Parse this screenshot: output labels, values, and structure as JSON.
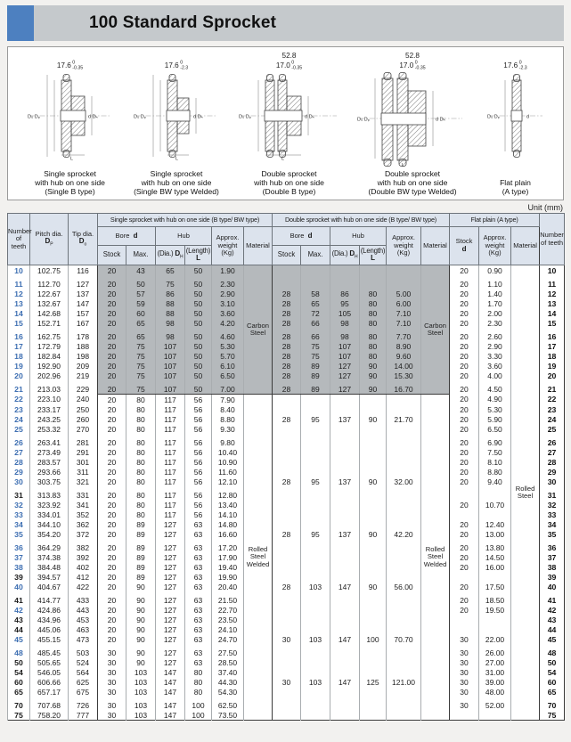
{
  "title": "100 Standard Sprocket",
  "unit": "Unit (mm)",
  "diagrams": [
    {
      "cap1": "Single sprocket",
      "cap2": "with hub on one side",
      "cap3": "(Single B type)",
      "dim1": {
        "main": "17.6",
        "tt": "0",
        "tb": "-0.35"
      },
      "lbl_left": "D₀ Dₚ",
      "lbl_right": "d Dₕ",
      "lbl_bottom": "L"
    },
    {
      "cap1": "Single sprocket",
      "cap2": "with hub on one side",
      "cap3": "(Single BW type Welded)",
      "dim1": {
        "main": "17.6",
        "tt": "0",
        "tb": "-2.3"
      },
      "lbl_left": "D₀ Dₚ",
      "lbl_right": "d Dₕ",
      "lbl_bottom": "L"
    },
    {
      "cap1": "Double sprocket",
      "cap2": "with hub on one side",
      "cap3": "(Double B type)",
      "dim1": {
        "main": "52.8"
      },
      "dim2": {
        "main": "17.0",
        "tt": "0",
        "tb": "-0.35"
      },
      "lbl_left": "D₀ Dₚ",
      "lbl_right": "d Dₕ",
      "lbl_bottom": "L"
    },
    {
      "cap1": "Double sprocket",
      "cap2": "with hub on one side",
      "cap3": "(Double BW type Welded)",
      "dim1": {
        "main": "52.8"
      },
      "dim2": {
        "main": "17.0",
        "tt": "0",
        "tb": "-0.35"
      },
      "lbl_left": "D₀ Dₚ",
      "lbl_right": "d Dₕ",
      "lbl_bottom": "L"
    },
    {
      "cap1": "Flat plain",
      "cap2": "(A type)",
      "dim1": {
        "main": "17.6",
        "tt": "0",
        "tb": "-2.3"
      },
      "lbl_left": "D₀ Dₚ",
      "lbl_right": "d"
    }
  ],
  "header": {
    "teeth": "Number\nof teeth",
    "pitch_label": "Pitch dia.",
    "pitch_sym": "D",
    "pitch_sub": "P",
    "tip_label": "Tip dia.",
    "tip_sym": "D",
    "tip_sub": "o",
    "single_group": "Single sprocket with hub on one side (B type/ BW type)",
    "double_group": "Double sprocket with hub on one side (B type/ BW type)",
    "flat_group": "Flat plain (A type)",
    "bore_label": "Bore",
    "bore_sym": "d",
    "hub": "Hub",
    "stock": "Stock",
    "max": "Max.",
    "dia_label": "(Dia.)",
    "dia_sym": "D",
    "dia_sub": "H",
    "len_label": "(Length)",
    "len_sym": "L",
    "approx": "Approx.\nweight\n(Kg)",
    "material": "Material"
  },
  "materials": {
    "carbon": "Carbon Steel",
    "rolled_welded": "Rolled Steel Welded",
    "rolled": "Rolled Steel"
  },
  "colors": {
    "accent_blue": "#4d80c0",
    "teeth_blue": "#3e6fb2",
    "header_bg": "#dce3ed",
    "shade_gray": "#b5b9bc",
    "titlebar_gray": "#c5c9cc"
  },
  "rows": [
    {
      "t": "10",
      "b": 1,
      "v": [
        "102.75",
        "116",
        "20",
        "43",
        "65",
        "50",
        "1.90",
        "",
        "",
        "",
        "",
        "",
        "20",
        "0.90"
      ]
    },
    {
      "t": "11",
      "b": 1,
      "v": [
        "112.70",
        "127",
        "20",
        "50",
        "75",
        "50",
        "2.30",
        "",
        "",
        "",
        "",
        "",
        "20",
        "1.10"
      ]
    },
    {
      "t": "12",
      "b": 1,
      "v": [
        "122.67",
        "137",
        "20",
        "57",
        "86",
        "50",
        "2.90",
        "28",
        "58",
        "86",
        "80",
        "5.00",
        "20",
        "1.40"
      ]
    },
    {
      "t": "13",
      "b": 1,
      "v": [
        "132.67",
        "147",
        "20",
        "59",
        "88",
        "50",
        "3.10",
        "28",
        "65",
        "95",
        "80",
        "6.00",
        "20",
        "1.70"
      ]
    },
    {
      "t": "14",
      "b": 1,
      "v": [
        "142.68",
        "157",
        "20",
        "60",
        "88",
        "50",
        "3.60",
        "28",
        "72",
        "105",
        "80",
        "7.10",
        "20",
        "2.00"
      ]
    },
    {
      "t": "15",
      "b": 1,
      "v": [
        "152.71",
        "167",
        "20",
        "65",
        "98",
        "50",
        "4.20",
        "28",
        "66",
        "98",
        "80",
        "7.10",
        "20",
        "2.30"
      ]
    },
    {
      "t": "16",
      "b": 1,
      "v": [
        "162.75",
        "178",
        "20",
        "65",
        "98",
        "50",
        "4.60",
        "28",
        "66",
        "98",
        "80",
        "7.70",
        "20",
        "2.60"
      ]
    },
    {
      "t": "17",
      "b": 1,
      "v": [
        "172.79",
        "188",
        "20",
        "75",
        "107",
        "50",
        "5.30",
        "28",
        "75",
        "107",
        "80",
        "8.90",
        "20",
        "2.90"
      ]
    },
    {
      "t": "18",
      "b": 1,
      "v": [
        "182.84",
        "198",
        "20",
        "75",
        "107",
        "50",
        "5.70",
        "28",
        "75",
        "107",
        "80",
        "9.60",
        "20",
        "3.30"
      ]
    },
    {
      "t": "19",
      "b": 1,
      "v": [
        "192.90",
        "209",
        "20",
        "75",
        "107",
        "50",
        "6.10",
        "28",
        "89",
        "127",
        "90",
        "14.00",
        "20",
        "3.60"
      ]
    },
    {
      "t": "20",
      "b": 1,
      "v": [
        "202.96",
        "219",
        "20",
        "75",
        "107",
        "50",
        "6.50",
        "28",
        "89",
        "127",
        "90",
        "15.30",
        "20",
        "4.00"
      ]
    },
    {
      "t": "21",
      "b": 1,
      "v": [
        "213.03",
        "229",
        "20",
        "75",
        "107",
        "50",
        "7.00",
        "28",
        "89",
        "127",
        "90",
        "16.70",
        "20",
        "4.50"
      ]
    },
    {
      "t": "22",
      "b": 1,
      "v": [
        "223.10",
        "240",
        "20",
        "80",
        "117",
        "56",
        "7.90",
        "",
        "",
        "",
        "",
        "",
        "20",
        "4.90"
      ]
    },
    {
      "t": "23",
      "b": 1,
      "v": [
        "233.17",
        "250",
        "20",
        "80",
        "117",
        "56",
        "8.40",
        "",
        "",
        "",
        "",
        "",
        "20",
        "5.30"
      ]
    },
    {
      "t": "24",
      "b": 1,
      "v": [
        "243.25",
        "260",
        "20",
        "80",
        "117",
        "56",
        "8.80",
        "28",
        "95",
        "137",
        "90",
        "21.70",
        "20",
        "5.90"
      ]
    },
    {
      "t": "25",
      "b": 1,
      "v": [
        "253.32",
        "270",
        "20",
        "80",
        "117",
        "56",
        "9.30",
        "",
        "",
        "",
        "",
        "",
        "20",
        "6.50"
      ]
    },
    {
      "t": "26",
      "b": 1,
      "v": [
        "263.41",
        "281",
        "20",
        "80",
        "117",
        "56",
        "9.80",
        "",
        "",
        "",
        "",
        "",
        "20",
        "6.90"
      ]
    },
    {
      "t": "27",
      "b": 1,
      "v": [
        "273.49",
        "291",
        "20",
        "80",
        "117",
        "56",
        "10.40",
        "",
        "",
        "",
        "",
        "",
        "20",
        "7.50"
      ]
    },
    {
      "t": "28",
      "b": 1,
      "v": [
        "283.57",
        "301",
        "20",
        "80",
        "117",
        "56",
        "10.90",
        "",
        "",
        "",
        "",
        "",
        "20",
        "8.10"
      ]
    },
    {
      "t": "29",
      "b": 1,
      "v": [
        "293.66",
        "311",
        "20",
        "80",
        "117",
        "56",
        "11.60",
        "",
        "",
        "",
        "",
        "",
        "20",
        "8.80"
      ]
    },
    {
      "t": "30",
      "b": 1,
      "v": [
        "303.75",
        "321",
        "20",
        "80",
        "117",
        "56",
        "12.10",
        "28",
        "95",
        "137",
        "90",
        "32.00",
        "20",
        "9.40"
      ]
    },
    {
      "t": "31",
      "b": 0,
      "v": [
        "313.83",
        "331",
        "20",
        "80",
        "117",
        "56",
        "12.80",
        "",
        "",
        "",
        "",
        "",
        "",
        ""
      ]
    },
    {
      "t": "32",
      "b": 1,
      "v": [
        "323.92",
        "341",
        "20",
        "80",
        "117",
        "56",
        "13.40",
        "",
        "",
        "",
        "",
        "",
        "20",
        "10.70"
      ]
    },
    {
      "t": "33",
      "b": 1,
      "v": [
        "334.01",
        "352",
        "20",
        "80",
        "117",
        "56",
        "14.10",
        "",
        "",
        "",
        "",
        "",
        "",
        ""
      ]
    },
    {
      "t": "34",
      "b": 1,
      "v": [
        "344.10",
        "362",
        "20",
        "89",
        "127",
        "63",
        "14.80",
        "",
        "",
        "",
        "",
        "",
        "20",
        "12.40"
      ]
    },
    {
      "t": "35",
      "b": 1,
      "v": [
        "354.20",
        "372",
        "20",
        "89",
        "127",
        "63",
        "16.60",
        "28",
        "95",
        "137",
        "90",
        "42.20",
        "20",
        "13.00"
      ]
    },
    {
      "t": "36",
      "b": 1,
      "v": [
        "364.29",
        "382",
        "20",
        "89",
        "127",
        "63",
        "17.20",
        "",
        "",
        "",
        "",
        "",
        "20",
        "13.80"
      ]
    },
    {
      "t": "37",
      "b": 1,
      "v": [
        "374.38",
        "392",
        "20",
        "89",
        "127",
        "63",
        "17.90",
        "",
        "",
        "",
        "",
        "",
        "20",
        "14.50"
      ]
    },
    {
      "t": "38",
      "b": 1,
      "v": [
        "384.48",
        "402",
        "20",
        "89",
        "127",
        "63",
        "19.40",
        "",
        "",
        "",
        "",
        "",
        "20",
        "16.00"
      ]
    },
    {
      "t": "39",
      "b": 0,
      "v": [
        "394.57",
        "412",
        "20",
        "89",
        "127",
        "63",
        "19.90",
        "",
        "",
        "",
        "",
        "",
        "",
        ""
      ]
    },
    {
      "t": "40",
      "b": 1,
      "v": [
        "404.67",
        "422",
        "20",
        "90",
        "127",
        "63",
        "20.40",
        "28",
        "103",
        "147",
        "90",
        "56.00",
        "20",
        "17.50"
      ]
    },
    {
      "t": "41",
      "b": 0,
      "v": [
        "414.77",
        "433",
        "20",
        "90",
        "127",
        "63",
        "21.50",
        "",
        "",
        "",
        "",
        "",
        "20",
        "18.50"
      ]
    },
    {
      "t": "42",
      "b": 1,
      "v": [
        "424.86",
        "443",
        "20",
        "90",
        "127",
        "63",
        "22.70",
        "",
        "",
        "",
        "",
        "",
        "20",
        "19.50"
      ]
    },
    {
      "t": "43",
      "b": 0,
      "v": [
        "434.96",
        "453",
        "20",
        "90",
        "127",
        "63",
        "23.50",
        "",
        "",
        "",
        "",
        "",
        "",
        ""
      ]
    },
    {
      "t": "44",
      "b": 0,
      "v": [
        "445.06",
        "463",
        "20",
        "90",
        "127",
        "63",
        "24.10",
        "",
        "",
        "",
        "",
        "",
        "",
        ""
      ]
    },
    {
      "t": "45",
      "b": 1,
      "v": [
        "455.15",
        "473",
        "20",
        "90",
        "127",
        "63",
        "24.70",
        "30",
        "103",
        "147",
        "100",
        "70.70",
        "30",
        "22.00"
      ]
    },
    {
      "t": "48",
      "b": 1,
      "v": [
        "485.45",
        "503",
        "30",
        "90",
        "127",
        "63",
        "27.50",
        "",
        "",
        "",
        "",
        "",
        "30",
        "26.00"
      ]
    },
    {
      "t": "50",
      "b": 0,
      "v": [
        "505.65",
        "524",
        "30",
        "90",
        "127",
        "63",
        "28.50",
        "",
        "",
        "",
        "",
        "",
        "30",
        "27.00"
      ]
    },
    {
      "t": "54",
      "b": 0,
      "v": [
        "546.05",
        "564",
        "30",
        "103",
        "147",
        "80",
        "37.40",
        "",
        "",
        "",
        "",
        "",
        "30",
        "31.00"
      ]
    },
    {
      "t": "60",
      "b": 0,
      "v": [
        "606.66",
        "625",
        "30",
        "103",
        "147",
        "80",
        "44.30",
        "30",
        "103",
        "147",
        "125",
        "121.00",
        "30",
        "39.00"
      ]
    },
    {
      "t": "65",
      "b": 0,
      "v": [
        "657.17",
        "675",
        "30",
        "103",
        "147",
        "80",
        "54.30",
        "",
        "",
        "",
        "",
        "",
        "30",
        "48.00"
      ]
    },
    {
      "t": "70",
      "b": 0,
      "v": [
        "707.68",
        "726",
        "30",
        "103",
        "147",
        "100",
        "62.50",
        "",
        "",
        "",
        "",
        "",
        "30",
        "52.00"
      ]
    },
    {
      "t": "75",
      "b": 0,
      "v": [
        "758.20",
        "777",
        "30",
        "103",
        "147",
        "100",
        "73.50",
        "",
        "",
        "",
        "",
        "",
        "",
        ""
      ]
    }
  ]
}
